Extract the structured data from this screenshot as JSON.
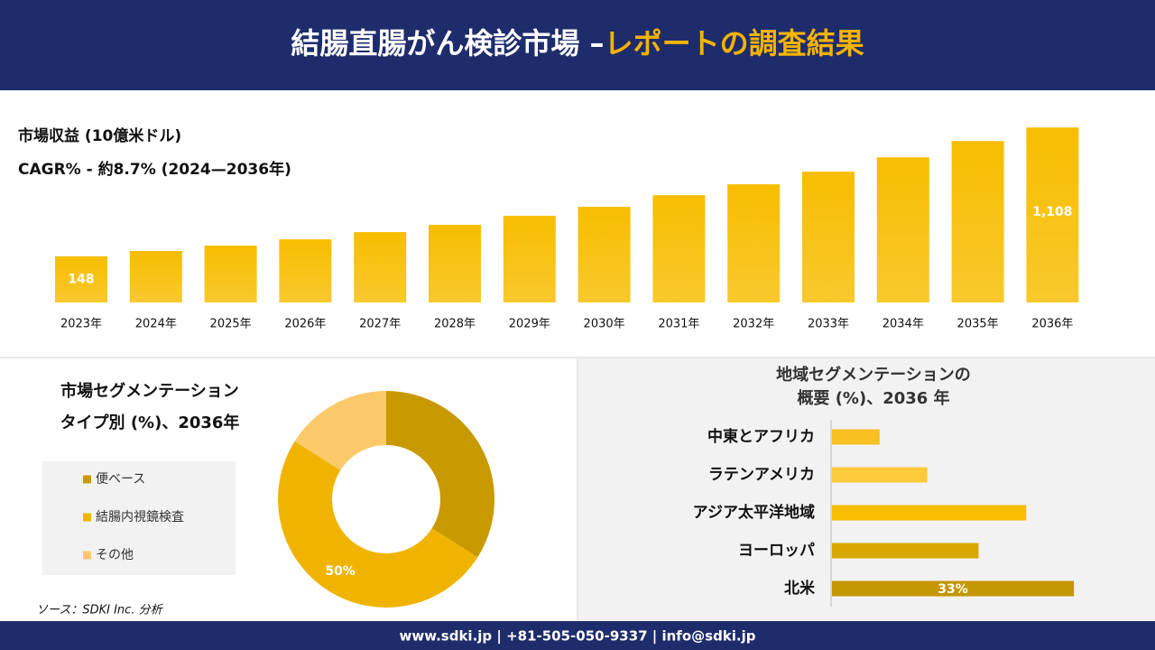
{
  "header": {
    "title_main": "結腸直腸がん検診市場 –",
    "title_accent": "レポートの調査結果"
  },
  "chart_data": [
    {
      "type": "bar",
      "orientation": "vertical",
      "title": "市場収益 (10億米ドル)",
      "subtitle": "CAGR% - 約8.7% (2024—2036年)",
      "categories": [
        "2023年",
        "2024年",
        "2025年",
        "2026年",
        "2027年",
        "2028年",
        "2029年",
        "2030年",
        "2031年",
        "2032年",
        "2033年",
        "2034年",
        "2035年",
        "2036年"
      ],
      "values": [
        148,
        188,
        228,
        275,
        329,
        383,
        450,
        517,
        604,
        685,
        779,
        886,
        1007,
        1108
      ],
      "value_labels": [
        "148",
        null,
        null,
        null,
        null,
        null,
        null,
        null,
        null,
        null,
        null,
        null,
        null,
        "1,108"
      ],
      "color": "#f7bd00",
      "ylim": [
        -195,
        1150
      ]
    },
    {
      "type": "donut",
      "title": [
        "市場セグメンテーション",
        "タイプ別 (%)、2036年"
      ],
      "categories": [
        "便ベース",
        "結腸内視鏡検査",
        "その他"
      ],
      "values": [
        34,
        50,
        16
      ],
      "value_labels": [
        null,
        "50%",
        null
      ],
      "colors": [
        "#c89a00",
        "#f0b400",
        "#fcc96a"
      ]
    },
    {
      "type": "bar",
      "orientation": "horizontal",
      "title": [
        "地域セグメンテーションの",
        "概要 (%)、2036 年"
      ],
      "categories": [
        "中東とアフリカ",
        "ラテンアメリカ",
        "アジア太平洋地域",
        "ヨーロッパ",
        "北米"
      ],
      "values": [
        6.5,
        13,
        26.5,
        20,
        33
      ],
      "value_labels": [
        null,
        null,
        null,
        null,
        "33%"
      ],
      "colors": [
        "#f8c020",
        "#fcc93a",
        "#f8bc00",
        "#d8a800",
        "#c49600"
      ],
      "xlim": [
        0,
        40
      ]
    }
  ],
  "source": "ソース：SDKI Inc. 分析",
  "footer": "www.sdki.jp | +81-505-050-9337 | info@sdki.jp"
}
